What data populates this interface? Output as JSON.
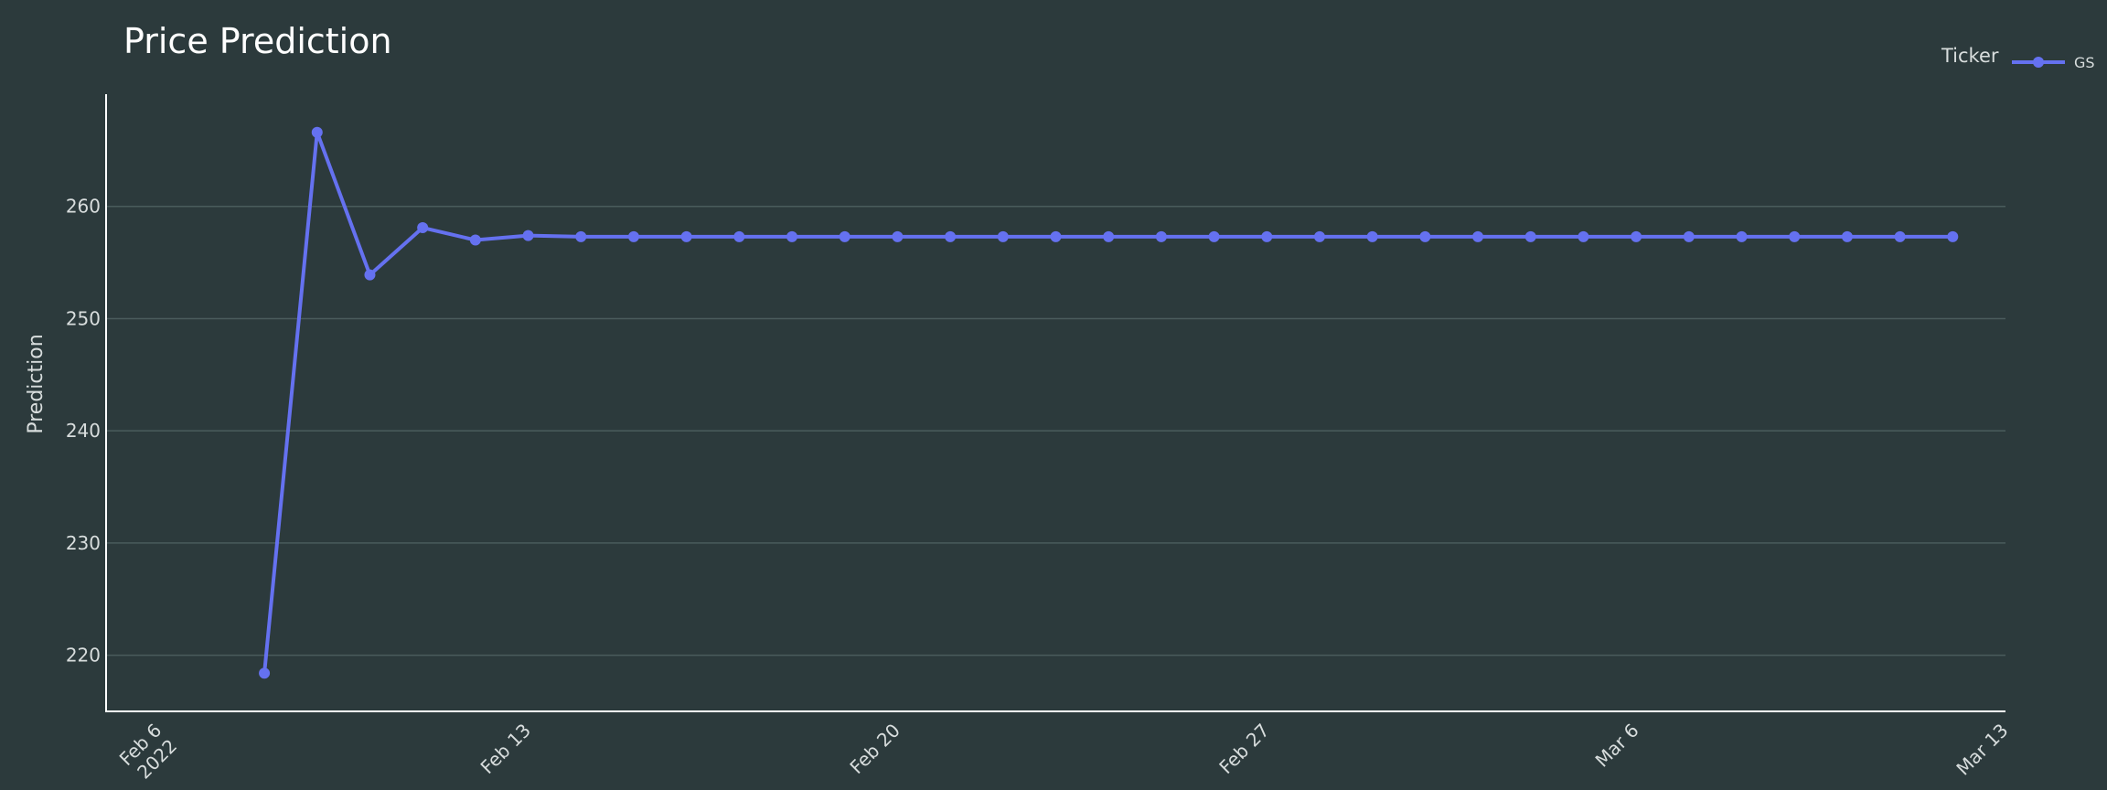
{
  "chart_data": {
    "type": "line",
    "title": "Price Prediction",
    "xlabel": "",
    "ylabel": "Prediction",
    "legend_title": "Ticker",
    "legend_position": "top-right",
    "grid": true,
    "ylim": [
      215,
      270
    ],
    "xlim": [
      "2022-02-05",
      "2022-03-13"
    ],
    "yticks": [
      220,
      230,
      240,
      250,
      260
    ],
    "xticks": [
      {
        "date": "2022-02-06",
        "label": [
          "Feb 6",
          "2022"
        ]
      },
      {
        "date": "2022-02-13",
        "label": [
          "Feb 13"
        ]
      },
      {
        "date": "2022-02-20",
        "label": [
          "Feb 20"
        ]
      },
      {
        "date": "2022-02-27",
        "label": [
          "Feb 27"
        ]
      },
      {
        "date": "2022-03-06",
        "label": [
          "Mar 6"
        ]
      },
      {
        "date": "2022-03-13",
        "label": [
          "Mar 13"
        ]
      }
    ],
    "series": [
      {
        "name": "GS",
        "color": "#6571f0",
        "x": [
          "2022-02-08",
          "2022-02-09",
          "2022-02-10",
          "2022-02-11",
          "2022-02-12",
          "2022-02-13",
          "2022-02-14",
          "2022-02-15",
          "2022-02-16",
          "2022-02-17",
          "2022-02-18",
          "2022-02-19",
          "2022-02-20",
          "2022-02-21",
          "2022-02-22",
          "2022-02-23",
          "2022-02-24",
          "2022-02-25",
          "2022-02-26",
          "2022-02-27",
          "2022-02-28",
          "2022-03-01",
          "2022-03-02",
          "2022-03-03",
          "2022-03-04",
          "2022-03-05",
          "2022-03-06",
          "2022-03-07",
          "2022-03-08",
          "2022-03-09",
          "2022-03-10",
          "2022-03-11",
          "2022-03-12"
        ],
        "values": [
          218.4,
          266.6,
          253.9,
          258.1,
          257.0,
          257.4,
          257.3,
          257.3,
          257.3,
          257.3,
          257.3,
          257.3,
          257.3,
          257.3,
          257.3,
          257.3,
          257.3,
          257.3,
          257.3,
          257.3,
          257.3,
          257.3,
          257.3,
          257.3,
          257.3,
          257.3,
          257.3,
          257.3,
          257.3,
          257.3,
          257.3,
          257.3,
          257.3
        ]
      }
    ]
  }
}
